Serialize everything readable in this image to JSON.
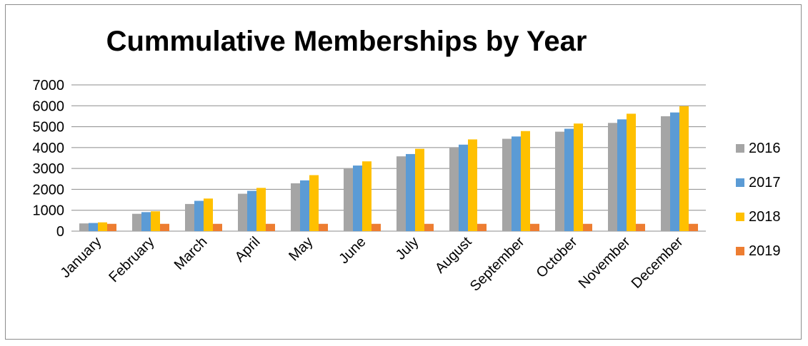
{
  "chart_data": {
    "type": "bar",
    "title": "Cummulative Memberships by Year",
    "xlabel": "",
    "ylabel": "",
    "ylim": [
      0,
      7000
    ],
    "yticks": [
      0,
      1000,
      2000,
      3000,
      4000,
      5000,
      6000,
      7000
    ],
    "grid": true,
    "legend_position": "right",
    "categories": [
      "January",
      "February",
      "March",
      "April",
      "May",
      "June",
      "July",
      "August",
      "September",
      "October",
      "November",
      "December"
    ],
    "series": [
      {
        "name": "2016",
        "color": "#a5a5a5",
        "values": [
          370,
          830,
          1300,
          1790,
          2290,
          3020,
          3580,
          4000,
          4420,
          4760,
          5180,
          5500
        ]
      },
      {
        "name": "2017",
        "color": "#5b9bd5",
        "values": [
          390,
          910,
          1450,
          1930,
          2430,
          3140,
          3690,
          4140,
          4530,
          4900,
          5350,
          5680
        ]
      },
      {
        "name": "2018",
        "color": "#ffc000",
        "values": [
          420,
          950,
          1560,
          2070,
          2680,
          3340,
          3940,
          4390,
          4790,
          5150,
          5620,
          5980
        ]
      },
      {
        "name": "2019",
        "color": "#ed7d31",
        "values": [
          350,
          350,
          350,
          350,
          350,
          350,
          350,
          350,
          350,
          350,
          350,
          350
        ]
      }
    ]
  }
}
